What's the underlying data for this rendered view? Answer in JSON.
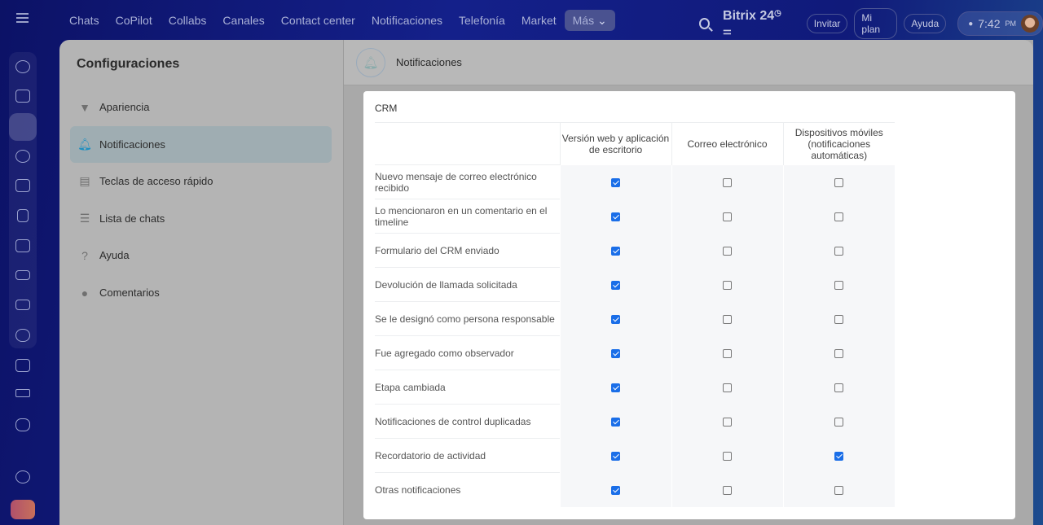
{
  "topbar": {
    "nav": [
      "Chats",
      "CoPilot",
      "Collabs",
      "Canales",
      "Contact center",
      "Notificaciones",
      "Telefonía",
      "Market",
      "Más"
    ],
    "brand": "Bitrix 24",
    "invite": "Invitar",
    "plan": "Mi plan",
    "help": "Ayuda",
    "time": "7:42",
    "ampm": "PM"
  },
  "settings": {
    "title": "Configuraciones",
    "menu": [
      {
        "label": "Apariencia",
        "icon": "brush-icon"
      },
      {
        "label": "Notificaciones",
        "icon": "bell-icon",
        "selected": true
      },
      {
        "label": "Teclas de acceso rápido",
        "icon": "keyboard-icon"
      },
      {
        "label": "Lista de chats",
        "icon": "list-icon"
      },
      {
        "label": "Ayuda",
        "icon": "question-icon"
      },
      {
        "label": "Comentarios",
        "icon": "comment-icon"
      }
    ]
  },
  "panel": {
    "title": "Notificaciones",
    "section": "CRM",
    "columns": [
      "Versión web y aplicación de escritorio",
      "Correo electrónico",
      "Dispositivos móviles (notificaciones automáticas)"
    ],
    "rows": [
      {
        "label": "Nuevo mensaje de correo electrónico recibido",
        "checks": [
          true,
          false,
          false
        ]
      },
      {
        "label": "Lo mencionaron en un comentario en el timeline",
        "checks": [
          true,
          false,
          false
        ]
      },
      {
        "label": "Formulario del CRM enviado",
        "checks": [
          true,
          false,
          false
        ]
      },
      {
        "label": "Devolución de llamada solicitada",
        "checks": [
          true,
          false,
          false
        ]
      },
      {
        "label": "Se le designó como persona responsable",
        "checks": [
          true,
          false,
          false
        ]
      },
      {
        "label": "Fue agregado como observador",
        "checks": [
          true,
          false,
          false
        ]
      },
      {
        "label": "Etapa cambiada",
        "checks": [
          true,
          false,
          false
        ]
      },
      {
        "label": "Notificaciones de control duplicadas",
        "checks": [
          true,
          false,
          false
        ]
      },
      {
        "label": "Recordatorio de actividad",
        "checks": [
          true,
          false,
          true
        ]
      },
      {
        "label": "Otras notificaciones",
        "checks": [
          true,
          false,
          false
        ]
      }
    ]
  },
  "colors": {
    "accent": "#1a6ee8",
    "selected_bg": "#9fadb2"
  }
}
